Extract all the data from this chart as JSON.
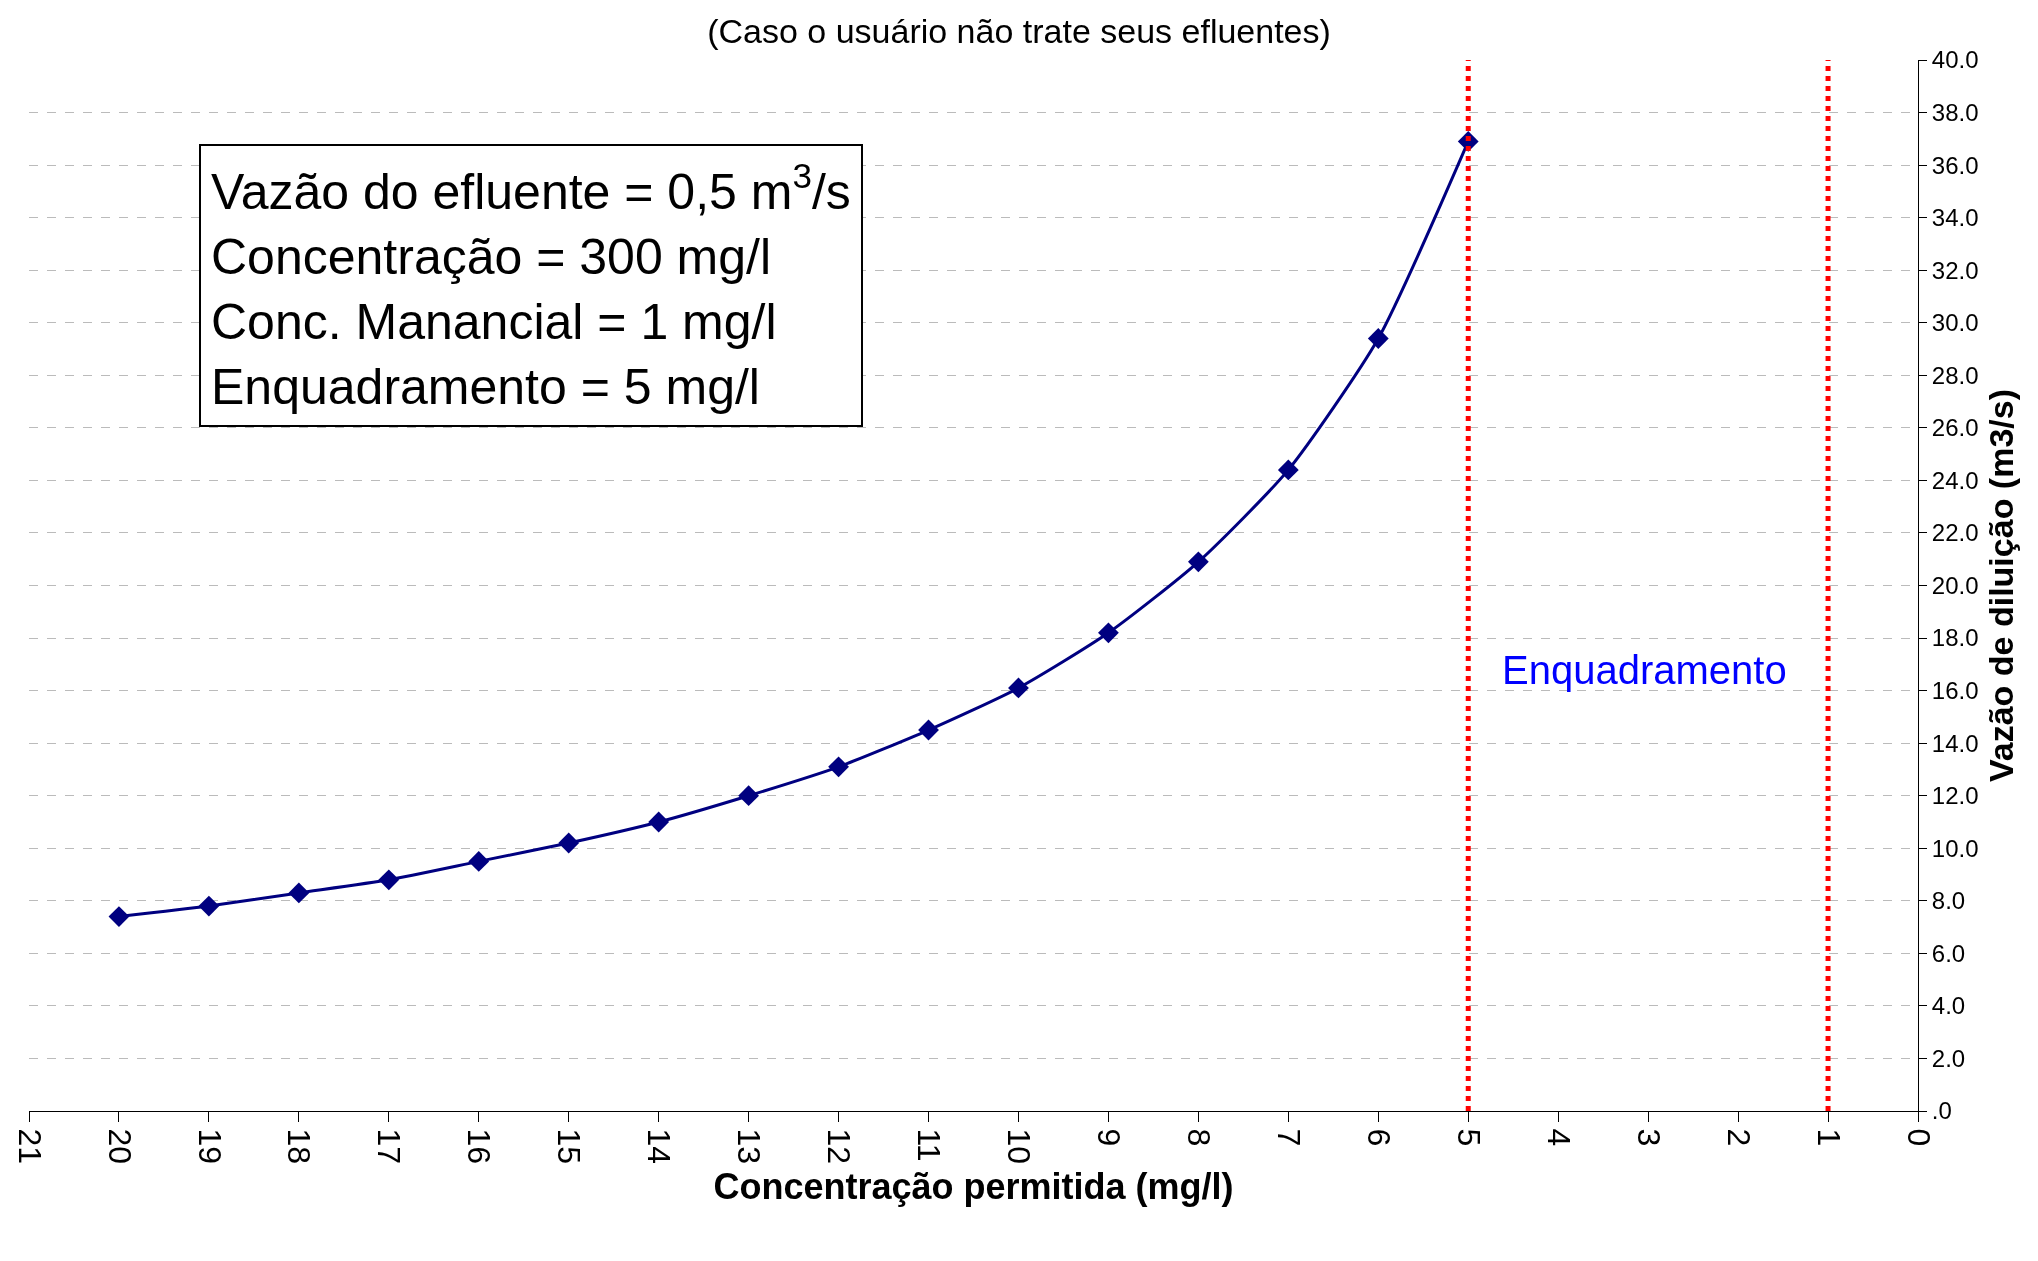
{
  "chart_data": {
    "type": "line",
    "title": "(Caso o usuário não trate seus efluentes)",
    "xlabel": "Concentração permitida (mg/l)",
    "ylabel": "Vazão de diluição (m3/s)",
    "x": [
      20,
      19,
      18,
      17,
      16,
      15,
      14,
      13,
      12,
      11,
      10,
      9,
      8,
      7,
      6,
      5
    ],
    "series": [
      {
        "color": "#000080",
        "values": [
          7.4,
          7.8,
          8.3,
          8.8,
          9.5,
          10.2,
          11.0,
          12.0,
          13.1,
          14.5,
          16.1,
          18.2,
          20.9,
          24.4,
          29.4,
          36.9
        ]
      }
    ],
    "xlim": [
      21,
      0
    ],
    "xticks": [
      21,
      20,
      19,
      18,
      17,
      16,
      15,
      14,
      13,
      12,
      11,
      10,
      9,
      8,
      7,
      6,
      5,
      4,
      3,
      2,
      1,
      0
    ],
    "ylim": [
      0,
      40
    ],
    "yticks": [
      {
        "value": 0,
        "label": ".0"
      },
      {
        "value": 2,
        "label": "2.0"
      },
      {
        "value": 4,
        "label": "4.0"
      },
      {
        "value": 6,
        "label": "6.0"
      },
      {
        "value": 8,
        "label": "8.0"
      },
      {
        "value": 10,
        "label": "10.0"
      },
      {
        "value": 12,
        "label": "12.0"
      },
      {
        "value": 14,
        "label": "14.0"
      },
      {
        "value": 16,
        "label": "16.0"
      },
      {
        "value": 18,
        "label": "18.0"
      },
      {
        "value": 20,
        "label": "20.0"
      },
      {
        "value": 22,
        "label": "22.0"
      },
      {
        "value": 24,
        "label": "24.0"
      },
      {
        "value": 26,
        "label": "26.0"
      },
      {
        "value": 28,
        "label": "28.0"
      },
      {
        "value": 30,
        "label": "30.0"
      },
      {
        "value": 32,
        "label": "32.0"
      },
      {
        "value": 34,
        "label": "34.0"
      },
      {
        "value": 36,
        "label": "36.0"
      },
      {
        "value": 38,
        "label": "38.0"
      },
      {
        "value": 40,
        "label": "40.0"
      }
    ],
    "ref_lines": [
      {
        "axis": "x",
        "value": 5,
        "color": "#ff0000",
        "line_style": "dotted"
      },
      {
        "axis": "x",
        "value": 1,
        "color": "#ff0000",
        "line_style": "dotted"
      }
    ],
    "annotations": [
      "Vazão do efluente = 0,5 m$^{3}$/s",
      "Concentração = 300 mg/l",
      "Conc. Manancial = 1 mg/l",
      "Enquadramento = 5 mg/l",
      "Enquadramento"
    ],
    "grid": "y",
    "marker": "diamond",
    "line_style": "solid",
    "legend": false
  }
}
